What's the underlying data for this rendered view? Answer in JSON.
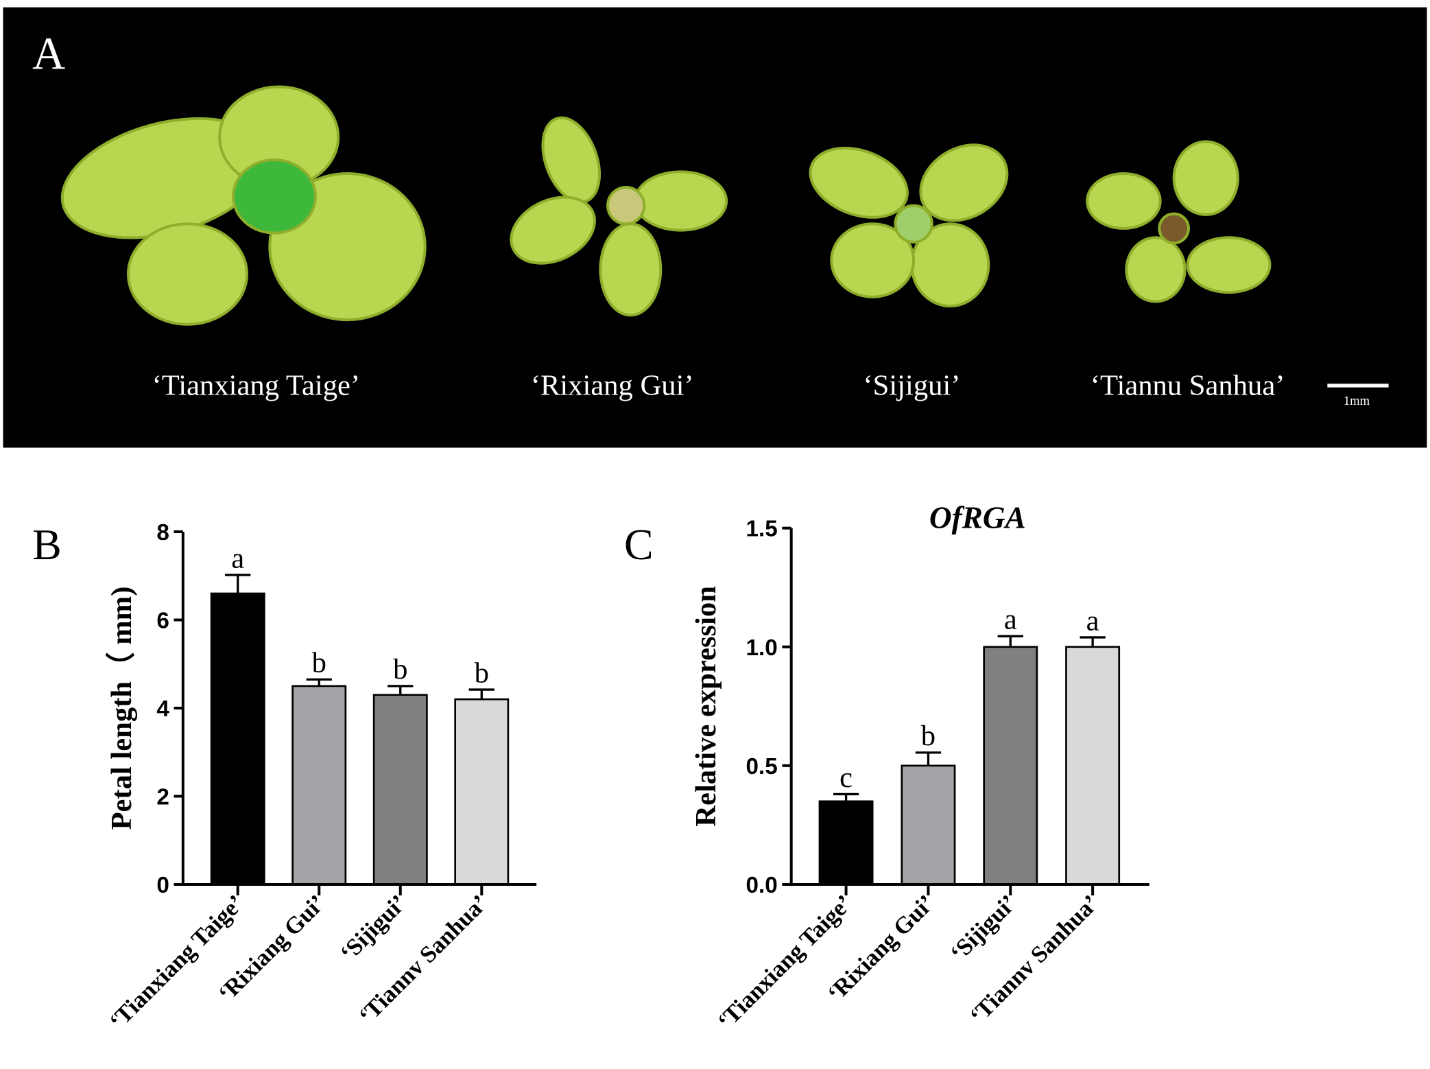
{
  "photo_panel": {
    "label": "A",
    "captions": [
      "‘Tianxiang Taige’",
      "‘Rixiang Gui’",
      "‘Sijigui’",
      "‘Tiannu Sanhua’"
    ],
    "scale_bar": "1mm"
  },
  "chart_data": [
    {
      "type": "bar",
      "panel_label": "B",
      "y_label": "Petal length（ mm)",
      "categories": [
        "‘Tianxiang Taige’",
        "‘Rixiang Gui’",
        "‘Sijigui’",
        "‘Tiannv Sanhua’"
      ],
      "values": [
        6.6,
        4.5,
        4.3,
        4.2
      ],
      "errors": [
        0.42,
        0.15,
        0.2,
        0.22
      ],
      "annotations": [
        "a",
        "b",
        "b",
        "b"
      ],
      "colors": [
        "#000000",
        "#a3a3a8",
        "#808080",
        "#d9d9d9"
      ],
      "ylim": [
        0,
        8
      ],
      "yticks": [
        0,
        2,
        4,
        6,
        8
      ]
    },
    {
      "type": "bar",
      "panel_label": "C",
      "title": "OfRGA",
      "y_label": "Relative expression",
      "categories": [
        "‘Tianxiang Taige’",
        "‘Rixiang Gui’",
        "‘Sijigui’",
        "‘Tiannv Sanhua’"
      ],
      "values": [
        0.35,
        0.5,
        1.0,
        1.0
      ],
      "errors": [
        0.03,
        0.055,
        0.045,
        0.04
      ],
      "annotations": [
        "c",
        "b",
        "a",
        "a"
      ],
      "colors": [
        "#000000",
        "#a3a3a8",
        "#808080",
        "#d9d9d9"
      ],
      "ylim": [
        0,
        1.5
      ],
      "yticks": [
        {
          "value": 0,
          "label": "0.0"
        },
        0.5,
        {
          "value": 1,
          "label": "1.0"
        },
        1.5
      ]
    }
  ]
}
